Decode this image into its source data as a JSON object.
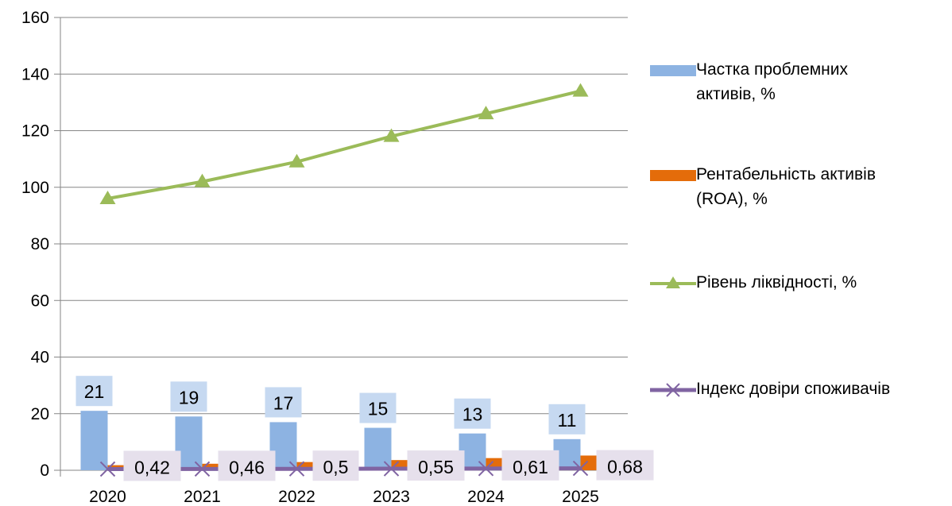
{
  "chart_data": {
    "type": "bar",
    "categories": [
      "2020",
      "2021",
      "2022",
      "2023",
      "2024",
      "2025"
    ],
    "ylim": [
      0,
      160
    ],
    "yticks": [
      0,
      20,
      40,
      60,
      80,
      100,
      120,
      140,
      160
    ],
    "grid": true,
    "legend_position": "right",
    "series": [
      {
        "name": "Частка проблемних активів, %",
        "kind": "bar",
        "color": "#8db3e2",
        "values": [
          21,
          19,
          17,
          15,
          13,
          11
        ],
        "labels": [
          "21",
          "19",
          "17",
          "15",
          "13",
          "11"
        ]
      },
      {
        "name": "Рентабельність активів (ROA), %",
        "kind": "bar",
        "color": "#e46c0a",
        "values": [
          1.8,
          2.3,
          2.9,
          3.6,
          4.3,
          5.2
        ]
      },
      {
        "name": "Рівень ліквідності, %",
        "kind": "line",
        "marker": "triangle",
        "color": "#9bbb59",
        "values": [
          96,
          102,
          109,
          118,
          126,
          134
        ]
      },
      {
        "name": "Індекс довіри споживачів",
        "kind": "line",
        "marker": "x",
        "color": "#8064a2",
        "values": [
          0.42,
          0.46,
          0.5,
          0.55,
          0.61,
          0.68
        ],
        "labels": [
          "0,42",
          "0,46",
          "0,5",
          "0,55",
          "0,61",
          "0,68"
        ]
      }
    ],
    "legend": [
      {
        "line1": "Частка проблемних",
        "line2": "активів, %"
      },
      {
        "line1": "Рентабельність активів",
        "line2": "(ROA), %"
      },
      {
        "line1": "Рівень ліквідності, %",
        "line2": ""
      },
      {
        "line1": "Індекс довіри споживачів",
        "line2": ""
      }
    ]
  }
}
